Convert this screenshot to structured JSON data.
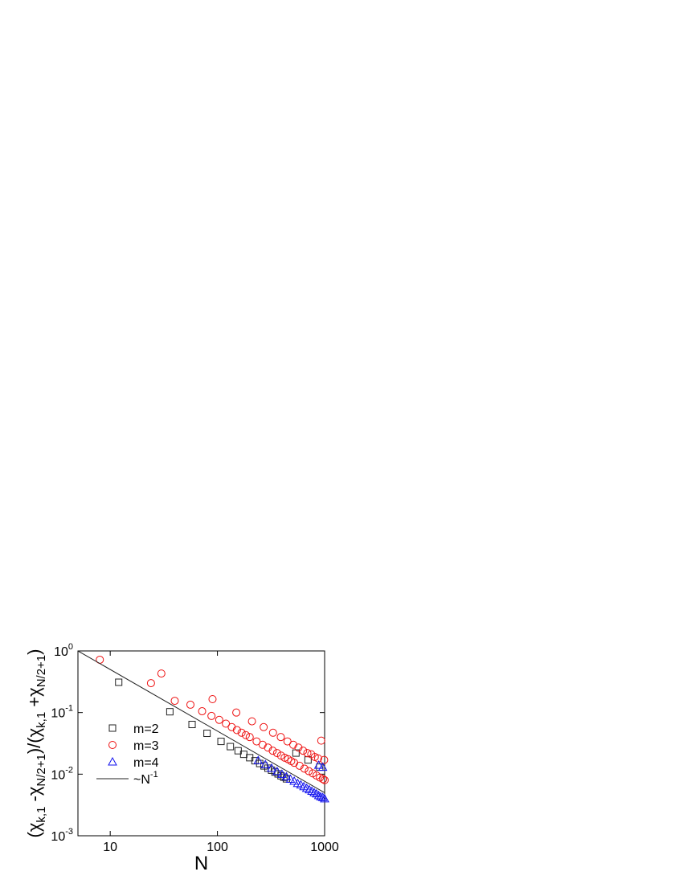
{
  "chart_data": {
    "type": "scatter",
    "xlabel": "N",
    "ylabel_parts": [
      {
        "text": "(χ"
      },
      {
        "text": "k,1",
        "sub": true
      },
      {
        "text": " -χ"
      },
      {
        "text": "N/2+1",
        "sub": true
      },
      {
        "text": ")/(χ"
      },
      {
        "text": "k,1",
        "sub": true
      },
      {
        "text": " +χ"
      },
      {
        "text": "N/2+1",
        "sub": true
      },
      {
        "text": ")"
      }
    ],
    "xscale": "log",
    "yscale": "log",
    "xlim": [
      5,
      1000
    ],
    "ylim": [
      0.001,
      1
    ],
    "xticks": [
      10,
      100,
      1000
    ],
    "yticks": [
      {
        "value": 0.001,
        "label": "10^-3"
      },
      {
        "value": 0.01,
        "label": "10^-2"
      },
      {
        "value": 0.1,
        "label": "10^-1"
      },
      {
        "value": 1,
        "label": "10^0"
      }
    ],
    "legend": "lower left",
    "series": [
      {
        "name": "m=2",
        "marker": "square",
        "color": "#222222",
        "x": [
          12,
          36,
          58,
          80,
          108,
          132,
          156,
          176,
          200,
          224,
          248,
          272,
          296,
          320,
          344,
          368,
          392,
          416,
          440,
          540,
          700,
          900
        ],
        "values": [
          0.31,
          0.103,
          0.064,
          0.046,
          0.034,
          0.028,
          0.024,
          0.021,
          0.0185,
          0.0165,
          0.0149,
          0.0136,
          0.0125,
          0.0116,
          0.0108,
          0.0101,
          0.0094,
          0.0089,
          0.0084,
          0.022,
          0.017,
          0.013
        ]
      },
      {
        "name": "m=3",
        "marker": "circle",
        "color": "#ee1111",
        "x": [
          8,
          30,
          90,
          150,
          210,
          270,
          330,
          390,
          450,
          510,
          570,
          630,
          690,
          750,
          810,
          870,
          930,
          990,
          24,
          40,
          56,
          72,
          88,
          104,
          120,
          136,
          152,
          168,
          184,
          200,
          232,
          264,
          296,
          328,
          360,
          392,
          424,
          456,
          488,
          520,
          584,
          648,
          712,
          776,
          840,
          904,
          968,
          1000
        ],
        "values": [
          0.72,
          0.43,
          0.165,
          0.1,
          0.072,
          0.058,
          0.047,
          0.04,
          0.034,
          0.03,
          0.027,
          0.024,
          0.022,
          0.021,
          0.019,
          0.018,
          0.035,
          0.017,
          0.3,
          0.155,
          0.134,
          0.105,
          0.088,
          0.076,
          0.066,
          0.058,
          0.052,
          0.047,
          0.043,
          0.04,
          0.034,
          0.03,
          0.027,
          0.024,
          0.022,
          0.02,
          0.0185,
          0.0175,
          0.0163,
          0.0153,
          0.0137,
          0.0123,
          0.0112,
          0.0103,
          0.0095,
          0.0088,
          0.0083,
          0.008
        ]
      },
      {
        "name": "m=4",
        "marker": "triangle",
        "color": "#1111ee",
        "x": [
          240,
          280,
          320,
          360,
          400,
          440,
          480,
          520,
          560,
          600,
          640,
          680,
          720,
          760,
          800,
          840,
          880,
          920,
          960,
          1000,
          880,
          960
        ],
        "values": [
          0.0167,
          0.0143,
          0.0125,
          0.0111,
          0.01,
          0.0091,
          0.0083,
          0.0077,
          0.0071,
          0.0067,
          0.0063,
          0.0059,
          0.0056,
          0.0053,
          0.005,
          0.0048,
          0.0045,
          0.0043,
          0.0042,
          0.004,
          0.014,
          0.013
        ]
      },
      {
        "name": "~N^-1",
        "marker": "line",
        "color": "#222222",
        "x": [
          5,
          1000
        ],
        "values": [
          1,
          0.005
        ]
      }
    ]
  }
}
